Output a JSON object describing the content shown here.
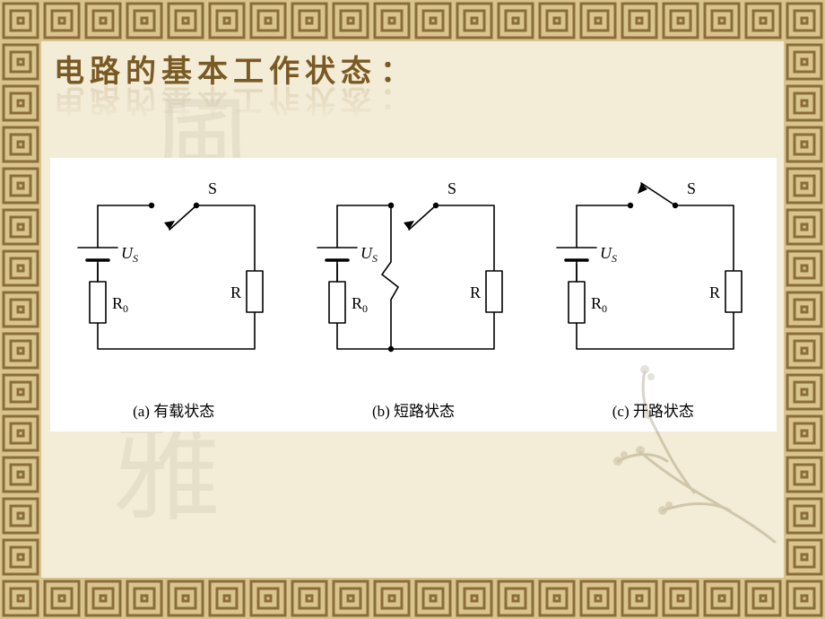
{
  "slide": {
    "title": "电路的基本工作状态",
    "title_colon": "：",
    "title_color": "#7a5a24",
    "background_color": "#f3ecd6",
    "border_pattern_dark": "#8a6d3b",
    "border_pattern_light": "#d9c48e",
    "content_bg": "#f3ecd6",
    "reflection_opacity": 0.28
  },
  "diagram": {
    "panel_bg": "#ffffff",
    "stroke": "#000000",
    "stroke_width": 1.6,
    "label_font": "serif",
    "circuits": [
      {
        "id": "a",
        "caption": "(a) 有载状态",
        "switch_closed": true,
        "short_circuit": false,
        "labels": {
          "switch": "S",
          "source": "Uₛ",
          "r0": "R₀",
          "r": "R"
        }
      },
      {
        "id": "b",
        "caption": "(b) 短路状态",
        "switch_closed": true,
        "short_circuit": true,
        "labels": {
          "switch": "S",
          "source": "Uₛ",
          "r0": "R₀",
          "r": "R"
        }
      },
      {
        "id": "c",
        "caption": "(c) 开路状态",
        "switch_closed": false,
        "short_circuit": false,
        "labels": {
          "switch": "S",
          "source": "Uₛ",
          "r0": "R₀",
          "r": "R"
        }
      }
    ]
  },
  "decor": {
    "branch_color": "#6b5a30"
  }
}
